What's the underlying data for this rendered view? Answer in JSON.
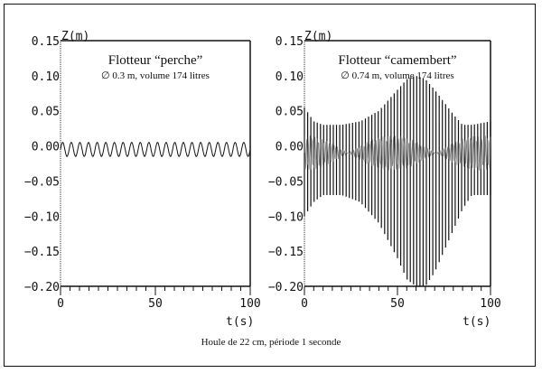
{
  "caption": "Houle de 22 cm, période 1 seconde",
  "chart_data": [
    {
      "type": "line",
      "title": "Flotteur “perche”",
      "subtitle": "∅ 0.3 m, volume 174 litres",
      "ylabel": "Z(m)",
      "xlabel": "t(s)",
      "xlim": [
        0,
        100
      ],
      "ylim": [
        -0.2,
        0.15
      ],
      "xticks": [
        "0",
        "50",
        "100"
      ],
      "yticks": [
        "0.15",
        "0.10",
        "0.05",
        "0.00",
        "-0.05",
        "-0.10",
        "-0.15",
        "-0.20"
      ],
      "series": [
        {
          "center": -0.005,
          "amplitude": 0.01,
          "cycles_shown": 22
        }
      ]
    },
    {
      "type": "line",
      "title": "Flotteur “camembert”",
      "subtitle": "∅ 0.74 m, volume 174 litres",
      "ylabel": "Z(m)",
      "xlabel": "t(s)",
      "xlim": [
        0,
        100
      ],
      "ylim": [
        -0.2,
        0.15
      ],
      "xticks": [
        "0",
        "50",
        "100"
      ],
      "yticks": [
        "0.15",
        "0.10",
        "0.05",
        "0.00",
        "-0.05",
        "-0.10",
        "-0.15",
        "-0.20"
      ],
      "series": [
        {
          "t": [
            0,
            5,
            10,
            20,
            30,
            40,
            50,
            55,
            60,
            65,
            70,
            80,
            85,
            90,
            100
          ],
          "upper": [
            0.055,
            0.035,
            0.03,
            0.03,
            0.035,
            0.05,
            0.08,
            0.095,
            0.1,
            0.095,
            0.08,
            0.045,
            0.03,
            0.03,
            0.035
          ],
          "lower": [
            -0.1,
            -0.08,
            -0.07,
            -0.07,
            -0.08,
            -0.11,
            -0.16,
            -0.19,
            -0.2,
            -0.2,
            -0.18,
            -0.12,
            -0.09,
            -0.07,
            -0.07
          ]
        }
      ]
    }
  ]
}
